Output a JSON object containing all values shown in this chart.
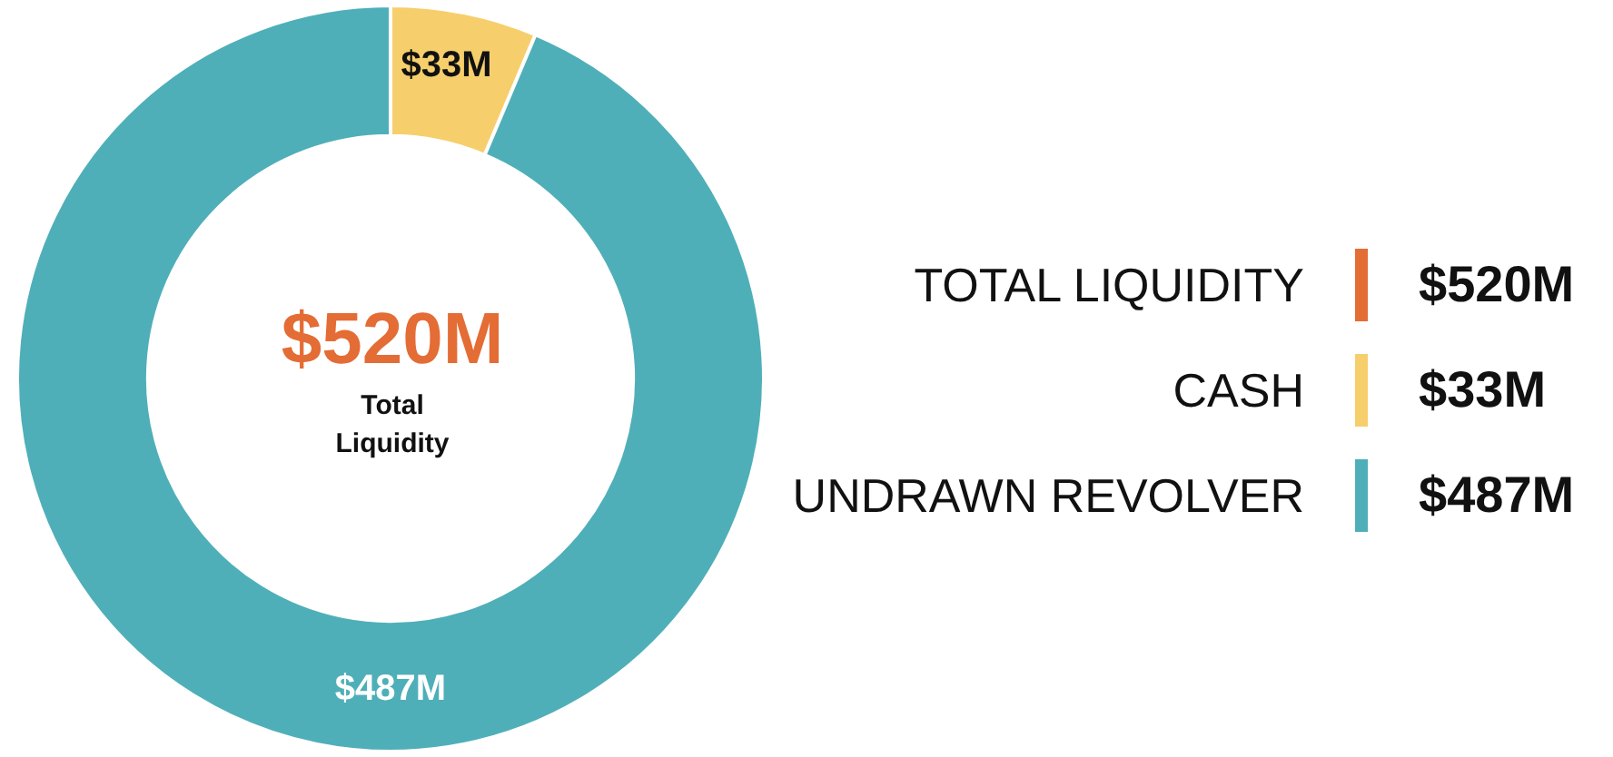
{
  "chart_data": {
    "type": "donut",
    "categories": [
      "CASH",
      "UNDRAWN REVOLVER"
    ],
    "values": [
      33,
      487
    ],
    "colors": [
      "#f6cf6c",
      "#4fafb8"
    ],
    "value_labels": [
      "$33M",
      "$487M"
    ],
    "legend": "right",
    "annotations": [
      "$520M",
      "Total Liquidity",
      "TOTAL LIQUIDITY",
      "$520M"
    ]
  }
}
